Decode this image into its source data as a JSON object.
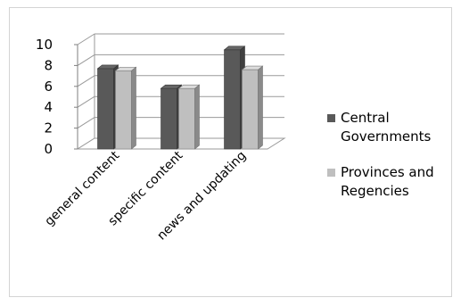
{
  "chart_data": {
    "type": "bar",
    "style": "3d-clustered-column",
    "categories": [
      "general content",
      "specific content",
      "news and updating"
    ],
    "series": [
      {
        "name": "Central Governments",
        "values": [
          7.7,
          5.8,
          9.5
        ],
        "color": "#595959"
      },
      {
        "name": "Provinces and Regencies",
        "values": [
          7.5,
          5.8,
          7.6
        ],
        "color": "#bfbfbf"
      }
    ],
    "y_ticks": [
      "0",
      "2",
      "4",
      "6",
      "8",
      "10"
    ],
    "ylim": [
      0,
      10
    ],
    "grid": true,
    "legend_position": "right",
    "legend_lines": [
      [
        "Central",
        "Governments"
      ],
      [
        "Provinces and",
        "Regencies"
      ]
    ]
  }
}
